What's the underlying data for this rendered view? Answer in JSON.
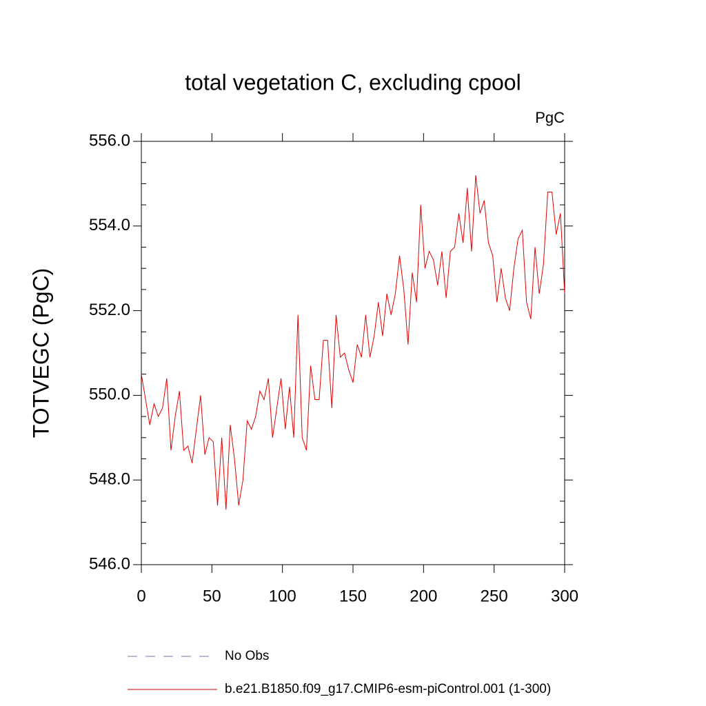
{
  "chart_data": {
    "type": "line",
    "title": "total vegetation C, excluding cpool",
    "units": "PgC",
    "y_label": "TOTVEGC  (PgC)",
    "xlim": [
      0,
      300
    ],
    "xticks": [
      0,
      50,
      100,
      150,
      200,
      250,
      300
    ],
    "ylim": [
      546,
      556
    ],
    "yticks": [
      {
        "value": 546,
        "label": "546.0"
      },
      {
        "value": 548,
        "label": "548.0"
      },
      {
        "value": 550,
        "label": "550.0"
      },
      {
        "value": 552,
        "label": "552.0"
      },
      {
        "value": 554,
        "label": "554.0"
      },
      {
        "value": 556,
        "label": "556.0"
      }
    ],
    "yminorticks": [
      546.5,
      547,
      547.5,
      548.5,
      549,
      549.5,
      550.5,
      551,
      551.5,
      552.5,
      553,
      553.5,
      554.5,
      555,
      555.5
    ],
    "reference": {
      "name": "No Obs",
      "color": "#7b6fb8",
      "dashed": true
    },
    "x": [
      0,
      3,
      6,
      9,
      12,
      15,
      18,
      21,
      24,
      27,
      30,
      33,
      36,
      39,
      42,
      45,
      48,
      51,
      54,
      57,
      60,
      63,
      66,
      69,
      72,
      75,
      78,
      81,
      84,
      87,
      90,
      93,
      96,
      99,
      102,
      105,
      108,
      111,
      114,
      117,
      120,
      123,
      126,
      129,
      132,
      135,
      138,
      141,
      144,
      147,
      150,
      153,
      156,
      159,
      162,
      165,
      168,
      171,
      174,
      177,
      180,
      183,
      186,
      189,
      192,
      195,
      198,
      201,
      204,
      207,
      210,
      213,
      216,
      219,
      222,
      225,
      228,
      231,
      234,
      237,
      240,
      243,
      246,
      249,
      252,
      255,
      258,
      261,
      264,
      267,
      270,
      273,
      276,
      279,
      282,
      285,
      288,
      291,
      294,
      297,
      300
    ],
    "series": [
      {
        "name": "b.e21.B1850.f09_g17.CMIP6-esm-piControl.001 (1-300)",
        "color": "#e00000",
        "values": [
          550.5,
          549.9,
          549.3,
          549.8,
          549.5,
          549.7,
          550.4,
          548.7,
          549.5,
          550.1,
          548.7,
          548.8,
          548.4,
          549.2,
          550.0,
          548.6,
          549.0,
          548.9,
          547.4,
          549.0,
          547.3,
          549.3,
          548.5,
          547.4,
          548.0,
          549.4,
          549.2,
          549.5,
          550.1,
          549.9,
          550.4,
          549.0,
          549.7,
          550.4,
          549.2,
          550.2,
          549.0,
          551.9,
          549.0,
          548.7,
          550.7,
          549.9,
          549.9,
          551.3,
          551.3,
          549.7,
          551.9,
          550.9,
          551.0,
          550.6,
          550.3,
          551.2,
          550.9,
          551.9,
          550.9,
          551.4,
          552.2,
          551.4,
          552.4,
          551.9,
          552.4,
          553.3,
          552.5,
          551.2,
          552.9,
          552.2,
          554.5,
          553.0,
          553.4,
          553.2,
          552.6,
          553.4,
          552.3,
          553.4,
          553.5,
          554.3,
          553.6,
          554.9,
          553.4,
          555.2,
          554.3,
          554.6,
          553.6,
          553.3,
          552.2,
          553.0,
          552.3,
          552.0,
          553.0,
          553.7,
          553.9,
          552.2,
          551.8,
          553.5,
          552.4,
          553.1,
          554.8,
          554.8,
          553.8,
          554.3,
          552.4
        ]
      }
    ]
  }
}
